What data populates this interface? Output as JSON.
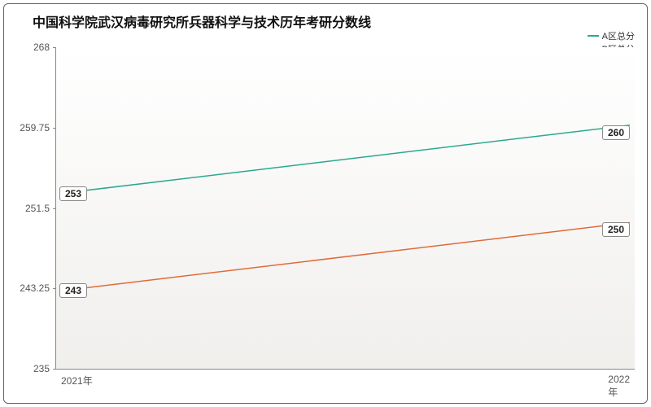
{
  "chart": {
    "type": "line",
    "title": "中国科学院武汉病毒研究所兵器科学与技术历年考研分数线",
    "title_fontsize": 17,
    "background_color": "#ffffff",
    "plot_bg_top": "#ffffff",
    "plot_bg_bottom": "#f0efec",
    "border_color": "#666666",
    "axis_color": "#888888",
    "tick_label_color": "#555555",
    "x": {
      "categories": [
        "2021年",
        "2022年"
      ],
      "label_fontsize": 12
    },
    "y": {
      "min": 235,
      "max": 268,
      "ticks": [
        235,
        243.25,
        251.5,
        259.75,
        268
      ],
      "label_fontsize": 12
    },
    "series": [
      {
        "name": "A区总分",
        "color": "#2aa98f",
        "line_width": 1.5,
        "values": [
          253,
          260
        ],
        "label_side": [
          "left",
          "right"
        ]
      },
      {
        "name": "B区总分",
        "color": "#e06a3b",
        "line_width": 1.5,
        "values": [
          243,
          250
        ],
        "label_side": [
          "left",
          "right"
        ]
      }
    ],
    "legend": {
      "position": "top-right",
      "fontsize": 11
    }
  }
}
